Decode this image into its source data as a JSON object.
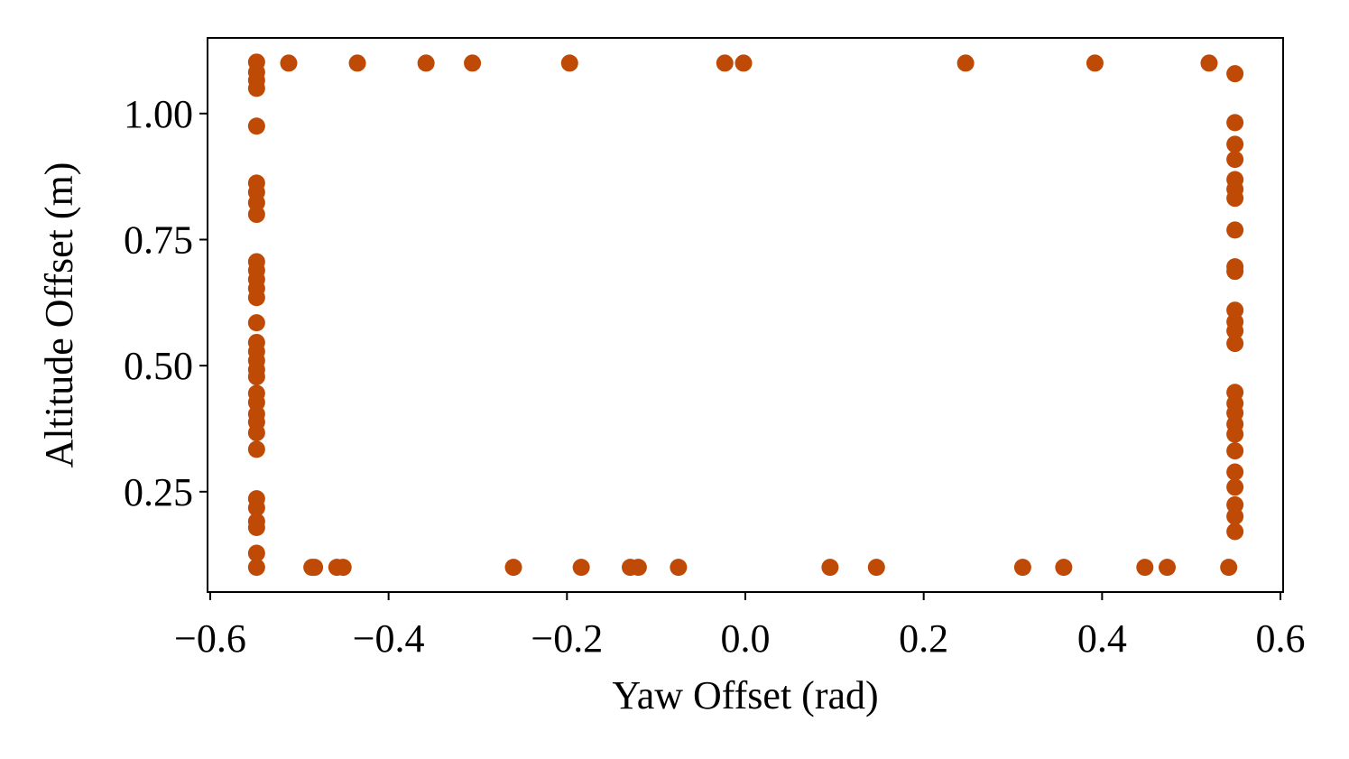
{
  "chart_data": {
    "type": "scatter",
    "xlabel": "Yaw Offset (rad)",
    "ylabel": "Altitude Offset (m)",
    "color": "#bf4a06",
    "xlim": [
      -0.603,
      0.603
    ],
    "ylim": [
      0.051,
      1.15
    ],
    "xticks": [
      {
        "value": -0.6,
        "label": "−0.6"
      },
      {
        "value": -0.4,
        "label": "−0.4"
      },
      {
        "value": -0.2,
        "label": "−0.2"
      },
      {
        "value": 0,
        "label": "0.0"
      },
      {
        "value": 0.2,
        "label": "0.2"
      },
      {
        "value": 0.4,
        "label": "0.4"
      },
      {
        "value": 0.6,
        "label": "0.6"
      }
    ],
    "yticks": [
      0.25,
      {
        "value": 0.5,
        "label": "0.50"
      },
      0.75,
      {
        "value": 1,
        "label": "1.00"
      }
    ],
    "x": [
      -0.512,
      -0.435,
      -0.358,
      -0.306,
      -0.197,
      -0.023,
      -0.002,
      0.247,
      0.392,
      0.52,
      -0.486,
      -0.483,
      -0.458,
      -0.451,
      -0.26,
      -0.184,
      -0.129,
      -0.12,
      -0.075,
      0.095,
      0.147,
      0.311,
      0.357,
      0.448,
      0.473,
      0.542,
      -0.548,
      -0.548,
      -0.548,
      -0.548,
      -0.548,
      -0.548,
      -0.548,
      -0.548,
      -0.548,
      -0.548,
      -0.548,
      -0.548,
      -0.548,
      -0.548,
      -0.548,
      -0.548,
      -0.548,
      -0.548,
      -0.548,
      -0.548,
      -0.548,
      -0.548,
      -0.548,
      -0.548,
      -0.548,
      -0.548,
      -0.548,
      -0.548,
      -0.548,
      -0.548,
      -0.548,
      -0.548,
      0.549,
      0.549,
      0.549,
      0.549,
      0.549,
      0.549,
      0.549,
      0.549,
      0.549,
      0.549,
      0.549,
      0.549,
      0.549,
      0.549,
      0.549,
      0.549,
      0.549,
      0.549,
      0.549,
      0.549,
      0.549,
      0.549,
      0.549,
      0.549,
      0.549
    ],
    "values": [
      1.1,
      1.1,
      1.1,
      1.1,
      1.1,
      1.1,
      1.1,
      1.1,
      1.1,
      1.1,
      0.1,
      0.1,
      0.1,
      0.1,
      0.1,
      0.1,
      0.1,
      0.1,
      0.1,
      0.1,
      0.1,
      0.1,
      0.1,
      0.1,
      0.1,
      0.1,
      1.102,
      1.082,
      1.066,
      1.05,
      0.975,
      0.862,
      0.844,
      0.823,
      0.8,
      0.706,
      0.689,
      0.671,
      0.653,
      0.635,
      0.585,
      0.546,
      0.528,
      0.51,
      0.492,
      0.478,
      0.445,
      0.427,
      0.404,
      0.388,
      0.367,
      0.334,
      0.236,
      0.218,
      0.191,
      0.179,
      0.128,
      0.1,
      1.079,
      0.982,
      0.939,
      0.909,
      0.869,
      0.85,
      0.832,
      0.769,
      0.696,
      0.687,
      0.61,
      0.587,
      0.569,
      0.544,
      0.447,
      0.425,
      0.406,
      0.384,
      0.364,
      0.331,
      0.289,
      0.259,
      0.224,
      0.201,
      0.171
    ]
  }
}
